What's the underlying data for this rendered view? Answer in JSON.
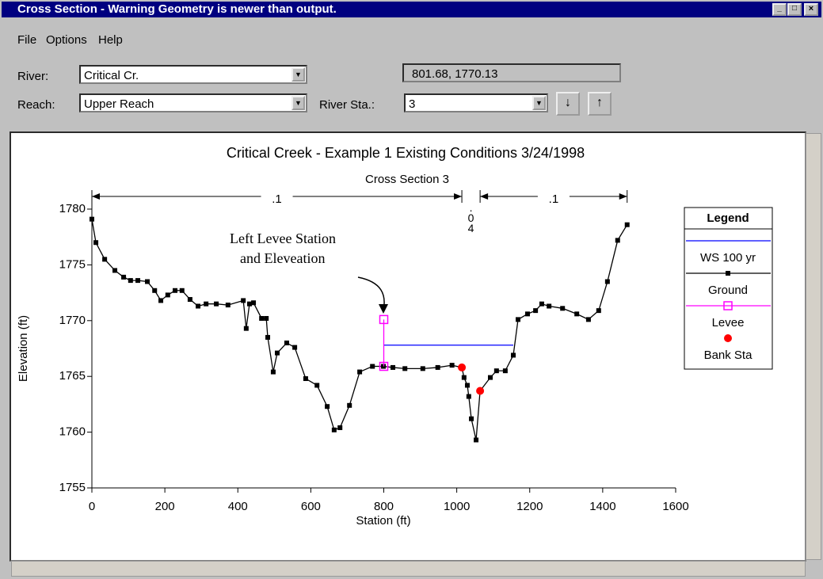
{
  "window": {
    "title": "Cross Section - Warning Geometry is newer than output."
  },
  "menu": [
    "File",
    "Options",
    "Help"
  ],
  "fields": {
    "river_label": "River:",
    "river": "Critical Cr.",
    "coords": "801.68, 1770.13",
    "reach_label": "Reach:",
    "reach": "Upper Reach",
    "station_label": "River Sta.:",
    "station": "3"
  },
  "chart_data": {
    "type": "line",
    "title": "Critical Creek - Example 1   Existing Conditions    3/24/1998",
    "subtitle": "Cross Section 3",
    "xlabel": "Station (ft)",
    "ylabel": "Elevation (ft)",
    "xlim": [
      0,
      1600
    ],
    "xticks": [
      0,
      200,
      400,
      600,
      800,
      1000,
      1200,
      1400,
      1600
    ],
    "ylim": [
      1755,
      1780
    ],
    "yticks": [
      1755,
      1760,
      1765,
      1770,
      1775,
      1780
    ],
    "n_values": [
      ".1",
      ".04",
      ".1"
    ],
    "annotation": [
      "Left Levee Station",
      "and Eleveation"
    ],
    "legend_title": "Legend",
    "series": [
      {
        "name": "WS 100 yr",
        "color": "#0000ff",
        "line": true,
        "x": [
          800,
          1155
        ],
        "values": [
          1767.8,
          1767.8
        ]
      },
      {
        "name": "Ground",
        "color": "#000000",
        "line": true,
        "marker": "square",
        "x": [
          0,
          11,
          35,
          63,
          87,
          106,
          126,
          152,
          172,
          189,
          208,
          228,
          247,
          269,
          291,
          313,
          341,
          373,
          415,
          423,
          432,
          443,
          465,
          478,
          482,
          497,
          508,
          534,
          556,
          586,
          617,
          645,
          664,
          680,
          706,
          734,
          769,
          799,
          825,
          858,
          907,
          948,
          987,
          1014,
          1020,
          1029,
          1033,
          1040,
          1053,
          1064,
          1092,
          1109,
          1133,
          1155,
          1168,
          1194,
          1216,
          1233,
          1253,
          1290,
          1329,
          1361,
          1389,
          1413,
          1441,
          1467
        ],
        "values": [
          1779.1,
          1777.0,
          1775.5,
          1774.5,
          1773.9,
          1773.6,
          1773.6,
          1773.5,
          1772.7,
          1771.8,
          1772.3,
          1772.7,
          1772.7,
          1771.9,
          1771.3,
          1771.5,
          1771.5,
          1771.4,
          1771.8,
          1769.3,
          1771.5,
          1771.6,
          1770.2,
          1770.2,
          1768.5,
          1765.4,
          1767.1,
          1768.0,
          1767.6,
          1764.8,
          1764.2,
          1762.3,
          1760.2,
          1760.4,
          1762.4,
          1765.4,
          1765.9,
          1765.9,
          1765.8,
          1765.7,
          1765.7,
          1765.8,
          1766.0,
          1765.8,
          1764.9,
          1764.2,
          1763.2,
          1761.2,
          1759.3,
          1763.7,
          1764.9,
          1765.5,
          1765.5,
          1766.9,
          1770.1,
          1770.6,
          1770.9,
          1771.5,
          1771.3,
          1771.1,
          1770.6,
          1770.1,
          1770.9,
          1773.5,
          1777.2,
          1778.6
        ]
      },
      {
        "name": "Levee",
        "color": "#ff00ff",
        "line": true,
        "marker": "open-square",
        "x": [
          800,
          800
        ],
        "values": [
          1770.1,
          1765.9
        ]
      },
      {
        "name": "Bank Sta",
        "color": "#ff0000",
        "line": false,
        "marker": "circle",
        "x": [
          1014,
          1064
        ],
        "values": [
          1765.8,
          1763.7
        ]
      }
    ]
  }
}
